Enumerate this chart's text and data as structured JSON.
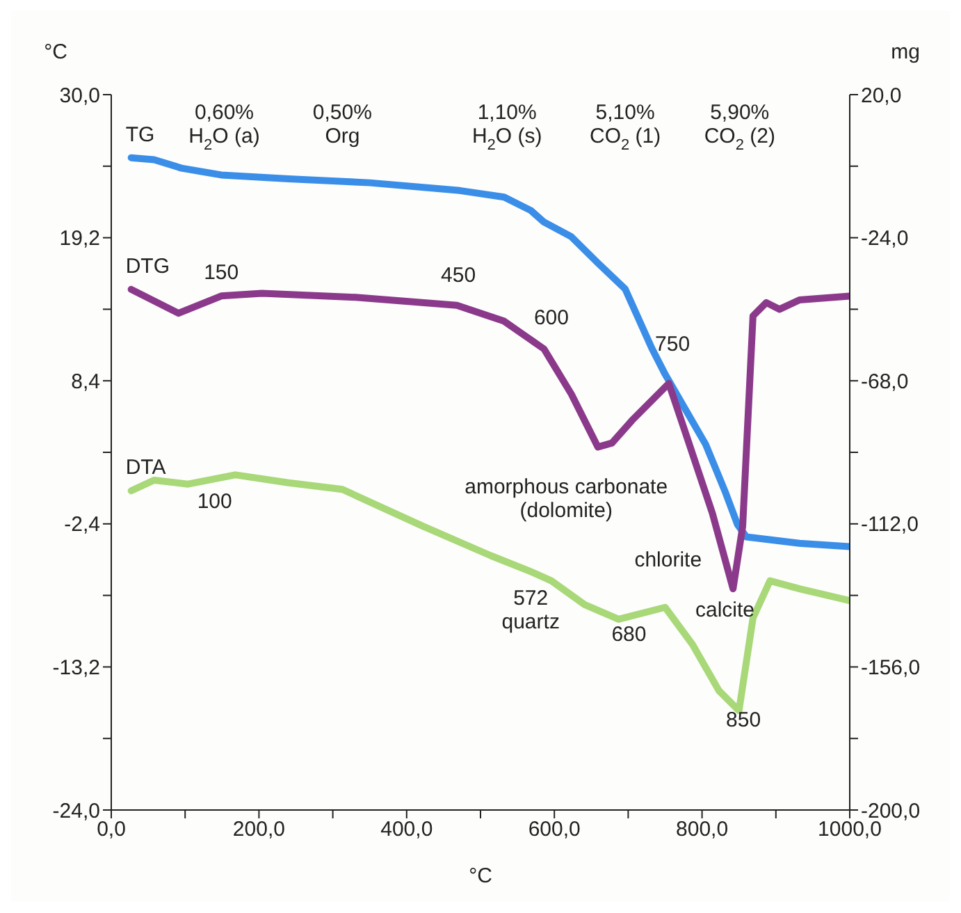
{
  "chart_data": {
    "type": "line",
    "xlabel": "°C",
    "ylabel": "°C",
    "y2label": "mg",
    "xlim": [
      0,
      1000
    ],
    "xticks": [
      {
        "value": 0,
        "label": "0,0"
      },
      {
        "value": 100,
        "label": null
      },
      {
        "value": 200,
        "label": "200,0"
      },
      {
        "value": 300,
        "label": null
      },
      {
        "value": 400,
        "label": "400,0"
      },
      {
        "value": 500,
        "label": null
      },
      {
        "value": 600,
        "label": "600,0"
      },
      {
        "value": 700,
        "label": null
      },
      {
        "value": 800,
        "label": "800,0"
      },
      {
        "value": 900,
        "label": null
      },
      {
        "value": 1000,
        "label": "1000,0"
      }
    ],
    "ylim": [
      -24,
      30
    ],
    "yticks": [
      {
        "value": -24,
        "label": "-24,0"
      },
      {
        "value": -18.6,
        "label": null
      },
      {
        "value": -13.2,
        "label": "-13,2"
      },
      {
        "value": -7.8,
        "label": null
      },
      {
        "value": -2.4,
        "label": "-2,4"
      },
      {
        "value": 3,
        "label": null
      },
      {
        "value": 8.4,
        "label": "8,4"
      },
      {
        "value": 13.8,
        "label": null
      },
      {
        "value": 19.2,
        "label": "19,2"
      },
      {
        "value": 24.6,
        "label": null
      },
      {
        "value": 30,
        "label": "30,0"
      }
    ],
    "y2lim": [
      -200,
      20
    ],
    "y2ticks": [
      {
        "value": -200,
        "label": "-200,0"
      },
      {
        "value": -178,
        "label": null
      },
      {
        "value": -156,
        "label": "-156,0"
      },
      {
        "value": -134,
        "label": null
      },
      {
        "value": -112,
        "label": "-112,0"
      },
      {
        "value": -90,
        "label": null
      },
      {
        "value": -68,
        "label": "-68,0"
      },
      {
        "value": -46,
        "label": null
      },
      {
        "value": -24,
        "label": "-24,0"
      },
      {
        "value": -2,
        "label": null
      },
      {
        "value": 20,
        "label": "20,0"
      }
    ],
    "series": [
      {
        "name": "TG",
        "color": "#3a8ee8",
        "axis": "y2",
        "x": [
          27,
          58,
          95,
          149,
          240,
          350,
          472,
          532,
          568,
          586,
          623,
          659,
          696,
          732,
          750,
          805,
          832,
          848,
          860,
          932,
          1000
        ],
        "values": [
          0.6,
          0,
          -2.6,
          -4.7,
          -5.9,
          -7.1,
          -9.5,
          -11.5,
          -15.6,
          -19.2,
          -23.7,
          -31.8,
          -39.8,
          -58,
          -66,
          -87.6,
          -102.5,
          -112.2,
          -116,
          -118,
          -119
        ]
      },
      {
        "name": "DTG",
        "color": "#8b3a8b",
        "x": [
          27,
          91,
          149,
          204,
          331,
          468,
          532,
          586,
          623,
          659,
          678,
          705,
          755,
          778,
          814,
          842,
          855,
          869,
          887,
          905,
          932,
          1000
        ],
        "values": [
          15.3,
          13.5,
          14.8,
          15,
          14.7,
          14.1,
          12.9,
          10.8,
          7.4,
          3.4,
          3.7,
          5.4,
          8.2,
          4.4,
          -1.6,
          -7.3,
          -2.6,
          13.3,
          14.3,
          13.8,
          14.5,
          14.8
        ]
      },
      {
        "name": "DTA",
        "color": "#a8d878",
        "x": [
          27,
          58,
          104,
          168,
          240,
          313,
          423,
          514,
          568,
          596,
          641,
          687,
          750,
          787,
          823,
          850,
          869,
          892,
          932,
          1000
        ],
        "values": [
          0.1,
          0.9,
          0.6,
          1.3,
          0.7,
          0.2,
          -2.6,
          -4.8,
          -6,
          -6.7,
          -8.5,
          -9.6,
          -8.7,
          -11.5,
          -15,
          -16.5,
          -9.5,
          -6.7,
          -7.3,
          -8.2
        ]
      }
    ],
    "annotations": [
      "0,60%\nH$_{2}$O (a)",
      "0,50%\nOrg",
      "1,10%\nH$_{2}$O (s)",
      "5,10%\nCO$_{2}$ (1)",
      "5,90%\nCO$_{2}$ (2)",
      "150",
      "450",
      "600",
      "750",
      "100",
      "amorphous carbonate\n(dolomite)",
      "chlorite",
      "calcite",
      "572\nquartz",
      "680",
      "850"
    ]
  }
}
